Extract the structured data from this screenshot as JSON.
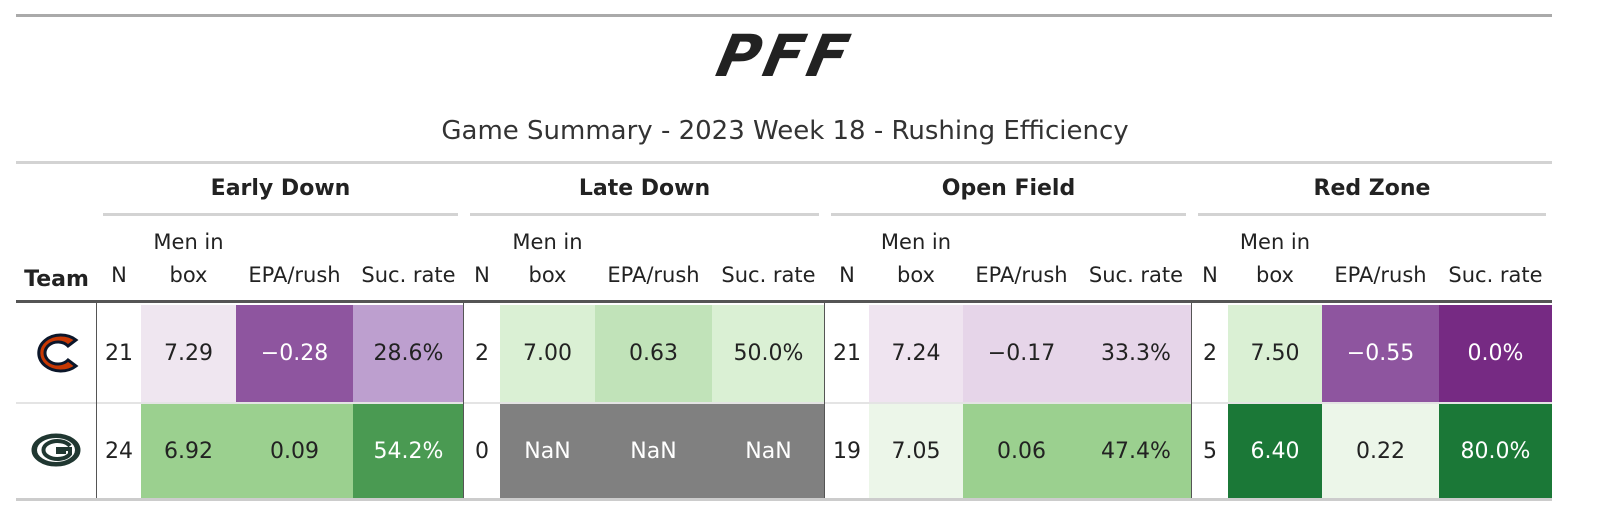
{
  "header": {
    "logo": "PFF",
    "title": "Game Summary - 2023 Week 18 - Rushing Efficiency"
  },
  "table": {
    "team_header": "Team",
    "groups": [
      {
        "label": "Early Down",
        "columns": [
          "N",
          "Men in box",
          "EPA/rush",
          "Suc. rate"
        ]
      },
      {
        "label": "Late Down",
        "columns": [
          "N",
          "Men in box",
          "EPA/rush",
          "Suc. rate"
        ]
      },
      {
        "label": "Open Field",
        "columns": [
          "N",
          "Men in box",
          "EPA/rush",
          "Suc. rate"
        ]
      },
      {
        "label": "Red Zone",
        "columns": [
          "N",
          "Men in box",
          "EPA/rush",
          "Suc. rate"
        ]
      }
    ],
    "rows": [
      {
        "cells": [
          {
            "text": "21",
            "bg": "#ffffff",
            "fg": "#222222"
          },
          {
            "text": "7.29",
            "bg": "#efe6f0",
            "fg": "#222222"
          },
          {
            "text": "−0.28",
            "bg": "#8e559f",
            "fg": "#ffffff"
          },
          {
            "text": "28.6%",
            "bg": "#bd9fcf",
            "fg": "#222222"
          },
          {
            "text": "2",
            "bg": "#ffffff",
            "fg": "#222222"
          },
          {
            "text": "7.00",
            "bg": "#daf0d4",
            "fg": "#222222"
          },
          {
            "text": "0.63",
            "bg": "#c1e3b9",
            "fg": "#222222"
          },
          {
            "text": "50.0%",
            "bg": "#daf0d4",
            "fg": "#222222"
          },
          {
            "text": "21",
            "bg": "#ffffff",
            "fg": "#222222"
          },
          {
            "text": "7.24",
            "bg": "#efe4f0",
            "fg": "#222222"
          },
          {
            "text": "−0.17",
            "bg": "#e6d5e9",
            "fg": "#222222"
          },
          {
            "text": "33.3%",
            "bg": "#e6d5e9",
            "fg": "#222222"
          },
          {
            "text": "2",
            "bg": "#ffffff",
            "fg": "#222222"
          },
          {
            "text": "7.50",
            "bg": "#daf0d4",
            "fg": "#222222"
          },
          {
            "text": "−0.55",
            "bg": "#8e559f",
            "fg": "#ffffff"
          },
          {
            "text": "0.0%",
            "bg": "#762a83",
            "fg": "#ffffff"
          }
        ]
      },
      {
        "cells": [
          {
            "text": "24",
            "bg": "#ffffff",
            "fg": "#222222"
          },
          {
            "text": "6.92",
            "bg": "#9bd08f",
            "fg": "#222222"
          },
          {
            "text": "0.09",
            "bg": "#9bd08f",
            "fg": "#222222"
          },
          {
            "text": "54.2%",
            "bg": "#4a9a52",
            "fg": "#ffffff"
          },
          {
            "text": "0",
            "bg": "#ffffff",
            "fg": "#222222"
          },
          {
            "text": "NaN",
            "bg": "#808080",
            "fg": "#ffffff"
          },
          {
            "text": "NaN",
            "bg": "#808080",
            "fg": "#ffffff"
          },
          {
            "text": "NaN",
            "bg": "#808080",
            "fg": "#ffffff"
          },
          {
            "text": "19",
            "bg": "#ffffff",
            "fg": "#222222"
          },
          {
            "text": "7.05",
            "bg": "#ecf6e9",
            "fg": "#222222"
          },
          {
            "text": "0.06",
            "bg": "#9bd08f",
            "fg": "#222222"
          },
          {
            "text": "47.4%",
            "bg": "#9bd08f",
            "fg": "#222222"
          },
          {
            "text": "5",
            "bg": "#ffffff",
            "fg": "#222222"
          },
          {
            "text": "6.40",
            "bg": "#1b7837",
            "fg": "#ffffff"
          },
          {
            "text": "0.22",
            "bg": "#ecf6e9",
            "fg": "#222222"
          },
          {
            "text": "80.0%",
            "bg": "#1b7837",
            "fg": "#ffffff"
          }
        ]
      }
    ]
  }
}
